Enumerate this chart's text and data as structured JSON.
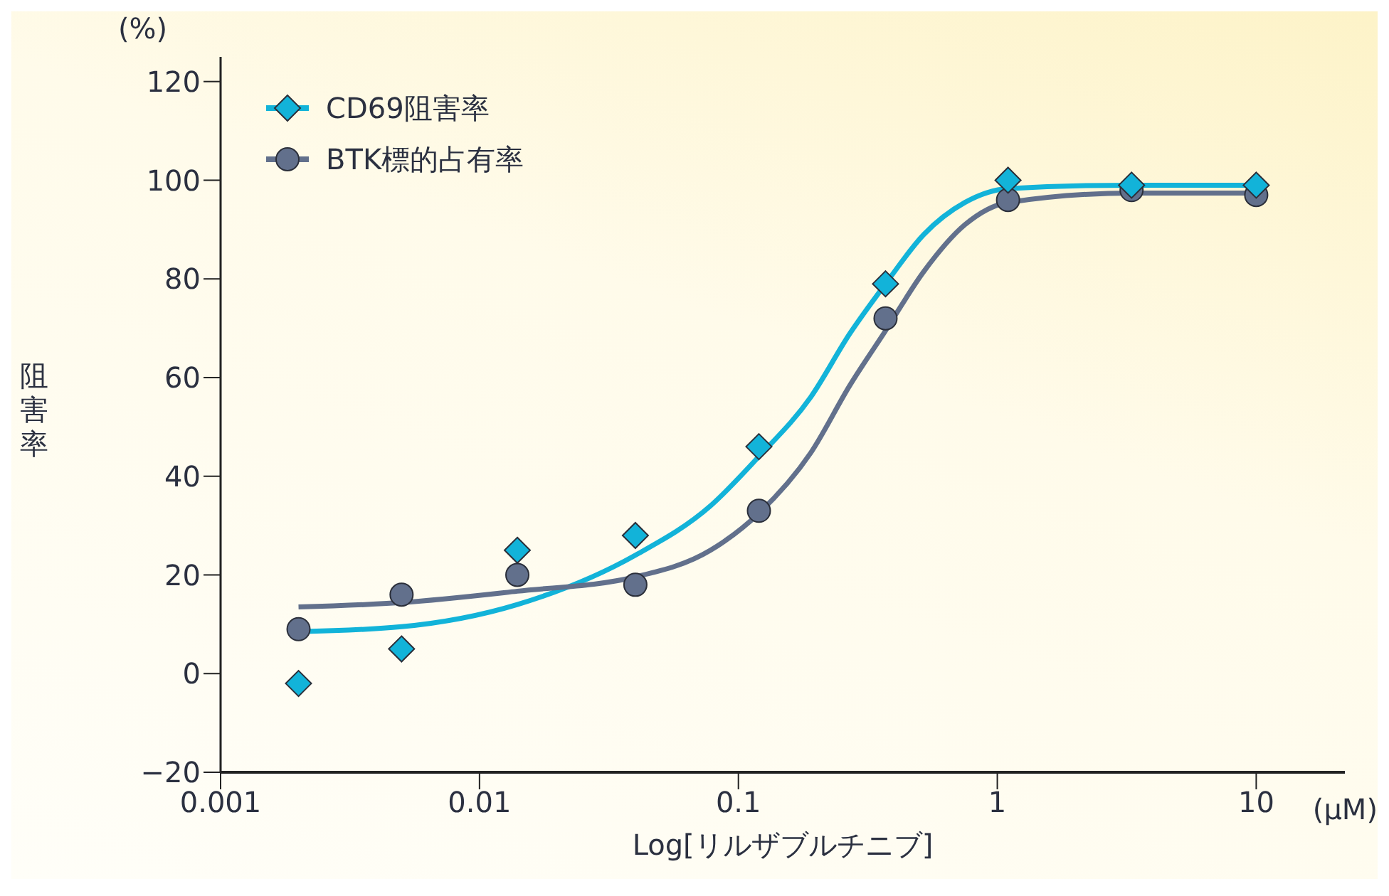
{
  "chart_data": {
    "type": "scatter",
    "xlabel": "Log[リルザブルチニブ]",
    "ylabel": "阻害率",
    "annotations": [
      "(%)",
      "(μM)"
    ],
    "log": "x",
    "xlim": [
      0.001,
      22
    ],
    "xticks": [
      0.001,
      0.01,
      0.1,
      1,
      10
    ],
    "ylim": [
      -20,
      125
    ],
    "yticks": [
      {
        "value": -20,
        "label": "−20"
      },
      0,
      20,
      40,
      60,
      80,
      100,
      120
    ],
    "grid": false,
    "legend": "top left",
    "series": [
      {
        "name": "CD69阻害率",
        "color": "#12b3d9",
        "marker": "diamond",
        "x": [
          0.002,
          0.005,
          0.014,
          0.04,
          0.12,
          0.37,
          1.1,
          3.3,
          10
        ],
        "values": [
          -2,
          5,
          25,
          28,
          46,
          79,
          100,
          99,
          99
        ]
      },
      {
        "name": "BTK標的占有率",
        "color": "#62708c",
        "marker": "circle",
        "x": [
          0.002,
          0.005,
          0.014,
          0.04,
          0.12,
          0.37,
          1.1,
          3.3,
          10
        ],
        "values": [
          9,
          16,
          20,
          18,
          33,
          72,
          96,
          98,
          97
        ]
      },
      {
        "type": "line",
        "color": "#12b3d9",
        "marker": "none",
        "x": [
          0.002,
          0.005,
          0.014,
          0.04,
          0.078,
          0.12,
          0.19,
          0.27,
          0.37,
          0.52,
          0.75,
          1.1,
          3.3,
          10
        ],
        "values": [
          8.5,
          9.5,
          14,
          24,
          34,
          44,
          56,
          69,
          79,
          89,
          95.5,
          98.3,
          99,
          99
        ]
      },
      {
        "type": "line",
        "color": "#62708c",
        "marker": "none",
        "x": [
          0.002,
          0.005,
          0.014,
          0.04,
          0.078,
          0.12,
          0.19,
          0.27,
          0.37,
          0.52,
          0.75,
          1.1,
          3.3,
          10
        ],
        "values": [
          13.5,
          14.4,
          16.7,
          19.6,
          25,
          32.5,
          44.7,
          58.5,
          69.5,
          81.5,
          91,
          95.5,
          97.4,
          97.4
        ]
      }
    ]
  }
}
